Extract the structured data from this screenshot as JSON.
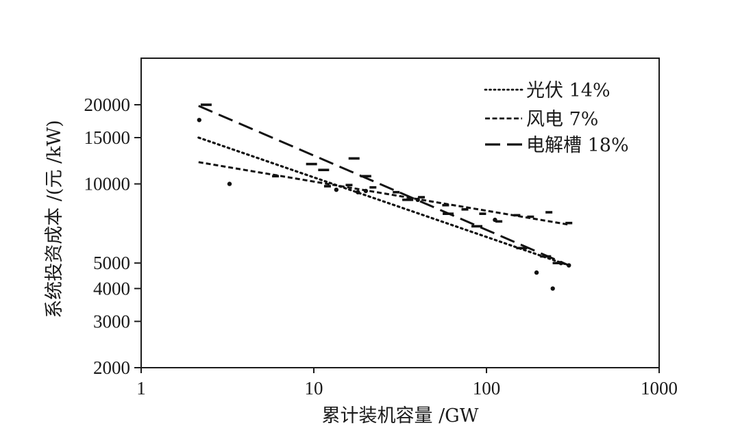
{
  "chart_data": {
    "type": "scatter",
    "title": "",
    "xlabel": "累计装机容量 /GW",
    "ylabel": "系统投资成本 /(元 /kW)",
    "x_scale": "log",
    "y_scale": "log",
    "xlim": [
      1,
      1000
    ],
    "ylim": [
      2000,
      28000
    ],
    "x_ticks": [
      1,
      10,
      100,
      1000
    ],
    "x_tick_labels": [
      "1",
      "10",
      "100",
      "1000"
    ],
    "y_ticks": [
      2000,
      3000,
      4000,
      5000,
      10000,
      15000,
      20000
    ],
    "y_tick_labels": [
      "2000",
      "3000",
      "4000",
      "5000",
      "10000",
      "15000",
      "20000"
    ],
    "grid": false,
    "legend_position": "upper right",
    "series": [
      {
        "name": "光伏 14%",
        "line_style": "dotted",
        "marker": "dot",
        "fit_line": [
          [
            2.15,
            15000
          ],
          [
            300,
            4900
          ]
        ],
        "points": [
          [
            2.17,
            17500
          ],
          [
            3.25,
            10000
          ],
          [
            13.5,
            9500
          ],
          [
            18,
            9300
          ],
          [
            20,
            9400
          ],
          [
            40,
            8700
          ],
          [
            112,
            7300
          ],
          [
            195,
            4600
          ],
          [
            242,
            4000
          ],
          [
            270,
            5000
          ],
          [
            300,
            4900
          ]
        ]
      },
      {
        "name": "风电 7%",
        "line_style": "dashed",
        "marker": "short-dash",
        "fit_line": [
          [
            2.15,
            12100
          ],
          [
            300,
            7000
          ]
        ],
        "points": [
          [
            6,
            10700
          ],
          [
            12,
            9800
          ],
          [
            16,
            9900
          ],
          [
            22,
            9700
          ],
          [
            30,
            9300
          ],
          [
            42,
            8900
          ],
          [
            58,
            8300
          ],
          [
            75,
            8000
          ],
          [
            95,
            7700
          ],
          [
            118,
            7200
          ],
          [
            150,
            7600
          ],
          [
            180,
            7500
          ],
          [
            230,
            7800
          ],
          [
            300,
            7100
          ]
        ]
      },
      {
        "name": "电解槽 18%",
        "line_style": "long-dashed",
        "marker": "dash",
        "fit_line": [
          [
            2.15,
            19800
          ],
          [
            300,
            4900
          ]
        ],
        "points": [
          [
            2.38,
            20000
          ],
          [
            9.7,
            11900
          ],
          [
            11.4,
            11300
          ],
          [
            17.1,
            12500
          ],
          [
            20,
            10700
          ],
          [
            35,
            8700
          ],
          [
            60,
            7700
          ],
          [
            88,
            6900
          ],
          [
            160,
            5700
          ],
          [
            220,
            5300
          ],
          [
            260,
            5000
          ]
        ]
      }
    ]
  }
}
